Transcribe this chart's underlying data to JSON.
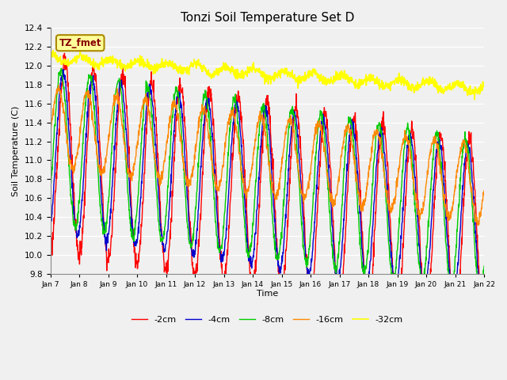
{
  "title": "Tonzi Soil Temperature Set D",
  "xlabel": "Time",
  "ylabel": "Soil Temperature (C)",
  "ylim": [
    9.8,
    12.4
  ],
  "annotation": "TZ_fmet",
  "annotation_bg": "#FFFF99",
  "annotation_border": "#AA8800",
  "annotation_text_color": "#880000",
  "bg_color": "#F0F0F0",
  "xtick_labels": [
    "Jan 7",
    "Jan 8",
    "Jan 9",
    "Jan 10",
    "Jan 11",
    "Jan 12",
    "Jan 13",
    "Jan 14",
    "Jan 15",
    "Jan 16",
    "Jan 17",
    "Jan 18",
    "Jan 19",
    "Jan 20",
    "Jan 21",
    "Jan 22"
  ],
  "series_colors": [
    "#FF0000",
    "#0000CC",
    "#00CC00",
    "#FF8800",
    "#FFFF00"
  ],
  "series_labels": [
    "-2cm",
    "-4cm",
    "-8cm",
    "-16cm",
    "-32cm"
  ],
  "n_points": 1500
}
